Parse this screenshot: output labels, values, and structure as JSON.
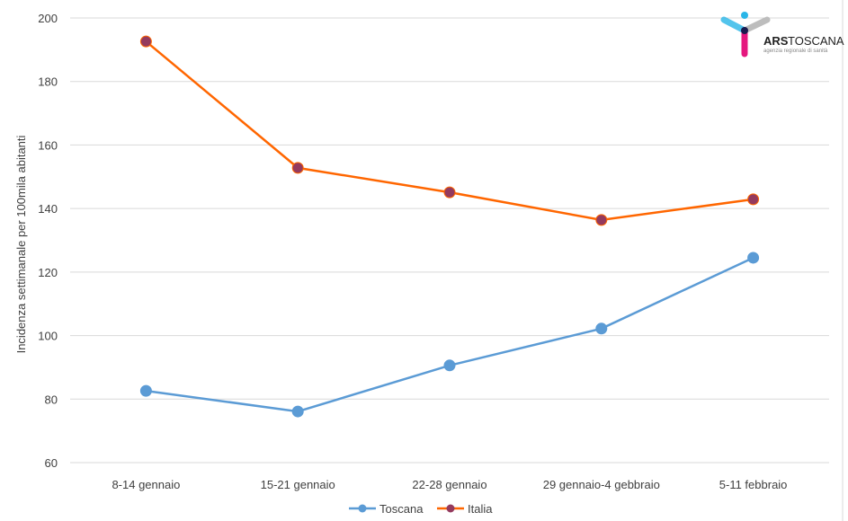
{
  "chart_data": {
    "type": "line",
    "title": "",
    "xlabel": "",
    "ylabel": "Incidenza settimanale per 100mila abitanti",
    "categories": [
      "8-14 gennaio",
      "15-21 gennaio",
      "22-28 gennaio",
      "29 gennaio-4 gebbraio",
      "5-11 febbraio"
    ],
    "ylim": [
      60,
      200
    ],
    "yticks": [
      60,
      80,
      100,
      120,
      140,
      160,
      180,
      200
    ],
    "grid": true,
    "legend": "bottom",
    "series": [
      {
        "name": "Toscana",
        "values": [
          82.6,
          76.1,
          90.6,
          102.2,
          124.5
        ],
        "color": "#5b9bd5",
        "marker": "#5b9bd5"
      },
      {
        "name": "Italia",
        "values": [
          192.6,
          152.8,
          145.1,
          136.4,
          142.9
        ],
        "color": "#ff6600",
        "marker": "#943a5e"
      }
    ]
  },
  "logo": {
    "name": "ARS TOSCANA",
    "tagline": "agenzia regionale di sanità"
  }
}
